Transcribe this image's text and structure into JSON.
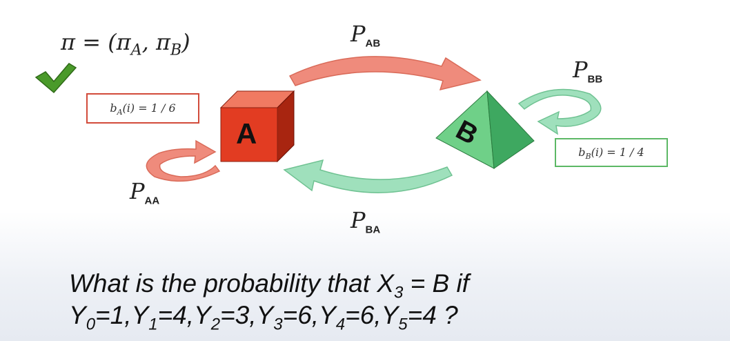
{
  "formula": {
    "lhs": "π",
    "eq": " = (",
    "pi_a": "π",
    "a": "A",
    "comma": ", ",
    "pi_b": "π",
    "b": "B",
    "close": ")"
  },
  "check_color": "#4a9a2a",
  "states": [
    {
      "letter": "A",
      "color": "#e23c22"
    },
    {
      "letter": "B",
      "color": "#5fc97a"
    }
  ],
  "emission_a": {
    "sym": "b",
    "sub": "A",
    "rest": "(i) = 1 / 6"
  },
  "emission_b": {
    "sym": "b",
    "sub": "B",
    "rest": "(i) = 1 / 4"
  },
  "transitions": {
    "ab": {
      "p": "P",
      "sub": "AB",
      "color": "#ef8b7c"
    },
    "bb": {
      "p": "P",
      "sub": "BB",
      "color": "#9fe0bc"
    },
    "aa": {
      "p": "P",
      "sub": "AA",
      "color": "#ef8b7c"
    },
    "ba": {
      "p": "P",
      "sub": "BA",
      "color": "#9fe0bc"
    }
  },
  "question": {
    "line1_pre": "What is the probability that X",
    "line1_sub": "3",
    "line1_post": " = B if",
    "seq": [
      {
        "v": "Y",
        "s": "0",
        "t": "=1,"
      },
      {
        "v": "Y",
        "s": "1",
        "t": "=4,"
      },
      {
        "v": "Y",
        "s": "2",
        "t": "=3,"
      },
      {
        "v": "Y",
        "s": "3",
        "t": "=6,"
      },
      {
        "v": "Y",
        "s": "4",
        "t": "=6,"
      },
      {
        "v": "Y",
        "s": "5",
        "t": "=4 ?"
      }
    ]
  }
}
